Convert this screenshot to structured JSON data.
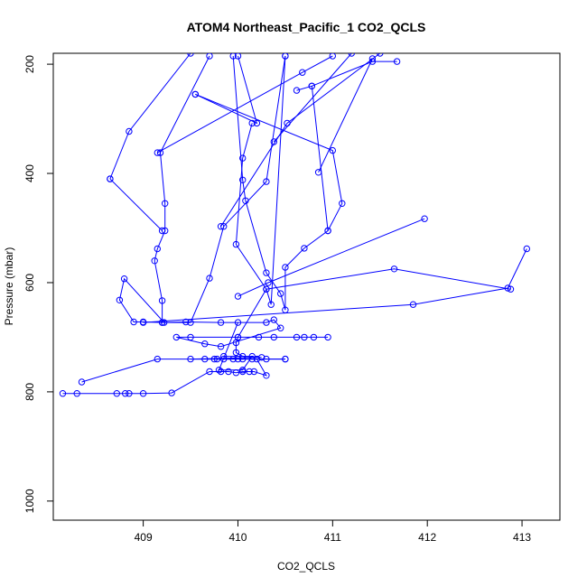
{
  "chart_data": {
    "type": "line",
    "title": "ATOM4 Northeast_Pacific_1 CO2_QCLS",
    "xlabel": "CO2_QCLS",
    "ylabel": "Pressure (mbar)",
    "xlim": [
      408.05,
      413.4
    ],
    "ylim": [
      1035,
      180
    ],
    "y_inverted": true,
    "x_ticks": [
      409,
      410,
      411,
      412,
      413
    ],
    "y_ticks": [
      200,
      400,
      600,
      800,
      1000
    ],
    "grid": false,
    "legend": "none",
    "series_color": "#0000ff",
    "marker": "open-circle",
    "series": [
      {
        "points": [
          [
            408.15,
            803
          ],
          [
            408.3,
            803
          ],
          [
            408.72,
            803
          ],
          [
            408.81,
            803
          ],
          [
            408.85,
            803
          ],
          [
            409.0,
            803
          ],
          [
            409.3,
            802
          ],
          [
            409.7,
            763
          ],
          [
            409.82,
            763
          ],
          [
            409.9,
            763
          ],
          [
            409.98,
            765
          ],
          [
            410.05,
            763
          ],
          [
            410.12,
            763
          ],
          [
            410.17,
            763
          ],
          [
            410.3,
            770
          ],
          [
            410.2,
            740
          ],
          [
            410.0,
            740
          ],
          [
            409.85,
            740
          ],
          [
            409.75,
            740
          ],
          [
            409.95,
            740
          ],
          [
            410.05,
            740
          ],
          [
            410.15,
            740
          ],
          [
            410.3,
            740
          ],
          [
            410.5,
            740
          ],
          [
            409.78,
            740
          ],
          [
            409.65,
            740
          ],
          [
            409.5,
            740
          ],
          [
            410.25,
            737
          ],
          [
            410.05,
            735
          ],
          [
            409.98,
            728
          ],
          [
            409.98,
            710
          ],
          [
            410.0,
            700
          ],
          [
            410.22,
            700
          ],
          [
            410.38,
            700
          ],
          [
            410.62,
            700
          ],
          [
            410.7,
            700
          ],
          [
            410.8,
            700
          ],
          [
            410.95,
            700
          ],
          [
            409.5,
            700
          ],
          [
            409.35,
            700
          ],
          [
            409.65,
            712
          ],
          [
            409.82,
            717
          ],
          [
            410.45,
            683
          ],
          [
            410.38,
            668
          ],
          [
            410.3,
            673
          ],
          [
            409.82,
            673
          ],
          [
            409.45,
            672
          ],
          [
            409.2,
            673
          ],
          [
            409.0,
            672
          ],
          [
            408.9,
            672
          ],
          [
            408.75,
            632
          ],
          [
            408.8,
            593
          ],
          [
            409.22,
            673
          ],
          [
            409.5,
            673
          ],
          [
            409.7,
            592
          ],
          [
            409.85,
            497
          ],
          [
            410.3,
            415
          ],
          [
            410.5,
            185
          ]
        ]
      },
      {
        "points": [
          [
            409.2,
            673
          ],
          [
            409.2,
            633
          ],
          [
            409.12,
            560
          ],
          [
            409.15,
            538
          ],
          [
            409.23,
            505
          ],
          [
            409.23,
            455
          ],
          [
            409.18,
            362
          ],
          [
            409.7,
            185
          ]
        ]
      },
      {
        "points": [
          [
            408.65,
            410
          ],
          [
            408.85,
            323
          ],
          [
            409.5,
            180
          ]
        ]
      },
      {
        "points": [
          [
            408.65,
            410
          ],
          [
            409.2,
            505
          ]
        ]
      },
      {
        "points": [
          [
            409.55,
            255
          ],
          [
            410.2,
            308
          ],
          [
            410.0,
            185
          ]
        ]
      },
      {
        "points": [
          [
            409.55,
            255
          ],
          [
            411.0,
            358
          ],
          [
            411.1,
            455
          ],
          [
            410.95,
            505
          ],
          [
            410.7,
            537
          ],
          [
            410.5,
            572
          ],
          [
            410.5,
            650
          ],
          [
            410.45,
            620
          ],
          [
            410.3,
            582
          ],
          [
            410.08,
            450
          ],
          [
            410.05,
            412
          ],
          [
            409.95,
            185
          ]
        ]
      },
      {
        "points": [
          [
            410.15,
            308
          ],
          [
            410.05,
            372
          ],
          [
            409.98,
            530
          ],
          [
            410.3,
            612
          ],
          [
            410.35,
            640
          ],
          [
            410.5,
            185
          ]
        ]
      },
      {
        "points": [
          [
            410.0,
            625
          ],
          [
            410.32,
            600
          ],
          [
            411.97,
            483
          ]
        ]
      },
      {
        "points": [
          [
            409.0,
            673
          ],
          [
            411.85,
            640
          ],
          [
            412.85,
            610
          ],
          [
            413.05,
            538
          ]
        ]
      },
      {
        "points": [
          [
            410.0,
            700
          ],
          [
            410.3,
            612
          ],
          [
            411.65,
            575
          ],
          [
            412.88,
            612
          ]
        ]
      },
      {
        "points": [
          [
            408.35,
            782
          ],
          [
            409.15,
            740
          ],
          [
            410.5,
            740
          ]
        ]
      },
      {
        "points": [
          [
            410.62,
            248
          ],
          [
            410.78,
            240
          ],
          [
            411.42,
            195
          ],
          [
            411.68,
            195
          ]
        ]
      },
      {
        "points": [
          [
            409.82,
            497
          ],
          [
            410.52,
            308
          ],
          [
            411.5,
            180
          ]
        ]
      },
      {
        "points": [
          [
            410.38,
            342
          ],
          [
            411.2,
            180
          ]
        ]
      },
      {
        "points": [
          [
            410.95,
            505
          ],
          [
            410.78,
            240
          ]
        ]
      },
      {
        "points": [
          [
            409.15,
            362
          ],
          [
            410.68,
            215
          ],
          [
            411.0,
            185
          ]
        ]
      },
      {
        "points": [
          [
            410.85,
            398
          ],
          [
            411.42,
            190
          ]
        ]
      },
      {
        "points": [
          [
            410.0,
            673
          ],
          [
            409.8,
            760
          ],
          [
            410.05,
            760
          ],
          [
            410.15,
            735
          ],
          [
            409.85,
            735
          ]
        ]
      }
    ]
  }
}
